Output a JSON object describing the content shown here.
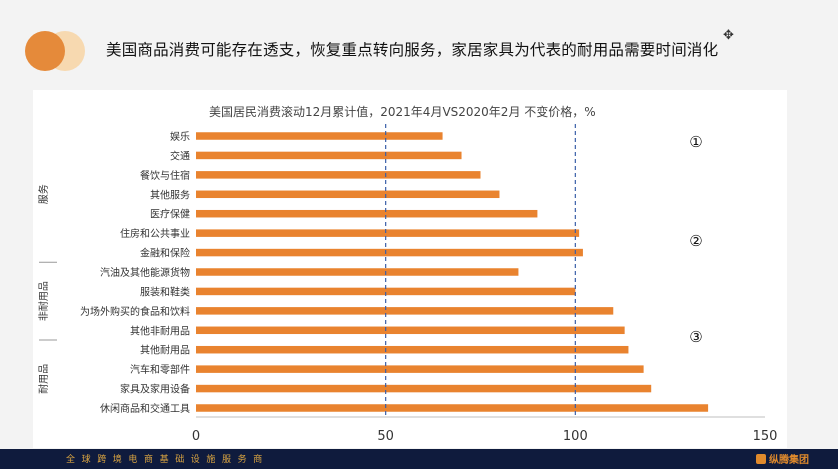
{
  "slide": {
    "title": "美国商品消费可能存在透支，恢复重点转向服务，家居家具为代表的耐用品需要时间消化",
    "footer_text": "全球跨境电商基础设施服务商",
    "footer_logo": "纵腾集团",
    "accent_color": "#e9832f"
  },
  "chart_data": {
    "type": "bar",
    "orientation": "horizontal",
    "title": "美国居民消费滚动12月累计值，2021年4月VS2020年2月   不变价格，%",
    "categories": [
      "娱乐",
      "交通",
      "餐饮与住宿",
      "其他服务",
      "医疗保健",
      "住房和公共事业",
      "金融和保险",
      "汽油及其他能源货物",
      "服装和鞋类",
      "为场外购买的食品和饮料",
      "其他非耐用品",
      "其他耐用品",
      "汽车和零部件",
      "家具及家用设备",
      "休闲商品和交通工具"
    ],
    "values": [
      65,
      70,
      75,
      80,
      90,
      101,
      102,
      85,
      100,
      110,
      113,
      114,
      118,
      120,
      135
    ],
    "xlim": [
      0,
      150
    ],
    "xticks": [
      0,
      50,
      100,
      150
    ],
    "reference_lines": [
      50,
      100
    ],
    "bar_color": "#e9832f",
    "group_labels": [
      {
        "label": "服务",
        "from": 0,
        "to": 6
      },
      {
        "label": "非耐用品",
        "from": 7,
        "to": 10
      },
      {
        "label": "耐用品",
        "from": 11,
        "to": 14
      }
    ],
    "annotations": [
      "①",
      "②",
      "③"
    ]
  }
}
